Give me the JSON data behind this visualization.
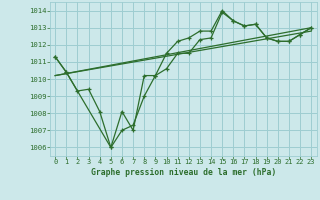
{
  "title": "Graphe pression niveau de la mer (hPa)",
  "background_color": "#cce8ea",
  "grid_color": "#9ecdd1",
  "line_color": "#2d6e2d",
  "xlim": [
    -0.5,
    23.5
  ],
  "ylim": [
    1005.5,
    1014.5
  ],
  "yticks": [
    1006,
    1007,
    1008,
    1009,
    1010,
    1011,
    1012,
    1013,
    1014
  ],
  "xticks": [
    0,
    1,
    2,
    3,
    4,
    5,
    6,
    7,
    8,
    9,
    10,
    11,
    12,
    13,
    14,
    15,
    16,
    17,
    18,
    19,
    20,
    21,
    22,
    23
  ],
  "series1_x": [
    0,
    1,
    2,
    3,
    4,
    5,
    6,
    7,
    8,
    9,
    10,
    11,
    12,
    13,
    14,
    15,
    16,
    17,
    18,
    19,
    20,
    21,
    22,
    23
  ],
  "series1_y": [
    1011.3,
    1010.4,
    1009.3,
    1009.4,
    1008.1,
    1006.0,
    1007.0,
    1007.3,
    1009.0,
    1010.2,
    1010.6,
    1011.5,
    1011.5,
    1012.3,
    1012.4,
    1013.9,
    1013.4,
    1013.1,
    1013.2,
    1012.4,
    1012.2,
    1012.2,
    1012.6,
    1013.0
  ],
  "series2_x": [
    0,
    1,
    5,
    6,
    7,
    8,
    9,
    10,
    11,
    12,
    13,
    14,
    15,
    16,
    17,
    18,
    19,
    20,
    21,
    22,
    23
  ],
  "series2_y": [
    1011.3,
    1010.4,
    1006.0,
    1008.1,
    1007.0,
    1010.2,
    1010.2,
    1011.5,
    1012.2,
    1012.4,
    1012.8,
    1012.8,
    1014.0,
    1013.4,
    1013.1,
    1013.2,
    1012.4,
    1012.2,
    1012.2,
    1012.6,
    1013.0
  ],
  "series3_x": [
    0,
    23
  ],
  "series3_y": [
    1010.2,
    1013.0
  ],
  "series4_x": [
    0,
    23
  ],
  "series4_y": [
    1010.2,
    1012.8
  ]
}
